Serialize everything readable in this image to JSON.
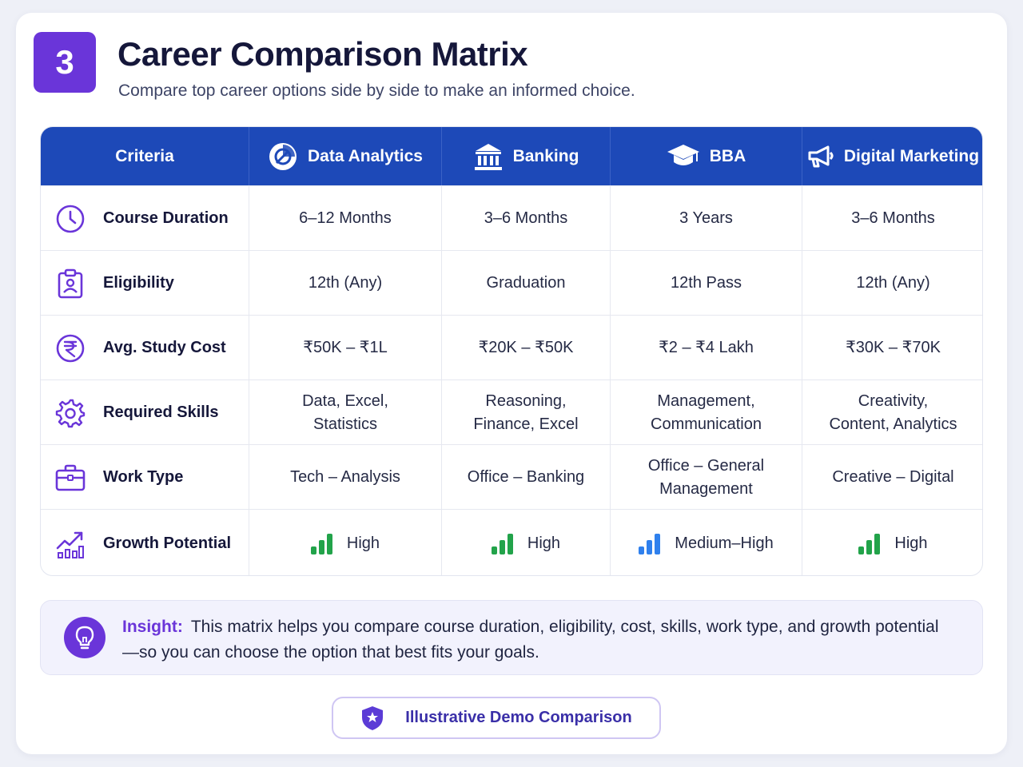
{
  "header": {
    "step": "3",
    "title": "Career Comparison Matrix",
    "subtitle": "Compare top career options side by side to make an informed choice."
  },
  "table": {
    "columns": [
      {
        "label": "Criteria",
        "icon": ""
      },
      {
        "label": "Data Analytics",
        "icon": "analytics-icon"
      },
      {
        "label": "Banking",
        "icon": "bank-icon"
      },
      {
        "label": "BBA",
        "icon": "graduation-cap-icon"
      },
      {
        "label": "Digital Marketing",
        "icon": "megaphone-icon"
      }
    ],
    "rows": [
      {
        "criterion": "Course Duration",
        "icon": "clock-icon",
        "values": [
          "6–12 Months",
          "3–6 Months",
          "3 Years",
          "3–6 Months"
        ]
      },
      {
        "criterion": "Eligibility",
        "icon": "clipboard-user-icon",
        "values": [
          "12th (Any)",
          "Graduation",
          "12th Pass",
          "12th (Any)"
        ]
      },
      {
        "criterion": "Avg. Study Cost",
        "icon": "rupee-icon",
        "values": [
          "₹50K – ₹1L",
          "₹20K – ₹50K",
          "₹2 – ₹4 Lakh",
          "₹30K – ₹70K"
        ]
      },
      {
        "criterion": "Required Skills",
        "icon": "gear-icon",
        "values": [
          "Data, Excel,\nStatistics",
          "Reasoning,\nFinance, Excel",
          "Management,\nCommunication",
          "Creativity,\nContent, Analytics"
        ]
      },
      {
        "criterion": "Work Type",
        "icon": "briefcase-icon",
        "values": [
          "Tech – Analysis",
          "Office – Banking",
          "Office – General\nManagement",
          "Creative – Digital"
        ]
      },
      {
        "criterion": "Growth Potential",
        "icon": "growth-chart-icon",
        "values": [
          "High",
          "High",
          "Medium–High",
          "High"
        ]
      }
    ],
    "growth_colors": {
      "High": "#22a34a",
      "Medium–High": "#2f80ed"
    }
  },
  "insight": {
    "label": "Insight:",
    "text": "This matrix helps you compare course duration, eligibility, cost, skills, work type, and growth potential—so you can choose the option that best fits your goals."
  },
  "footer": {
    "badge": "Illustrative Demo Comparison"
  },
  "colors": {
    "accent": "#6a35d9",
    "header": "#1d49b8"
  }
}
